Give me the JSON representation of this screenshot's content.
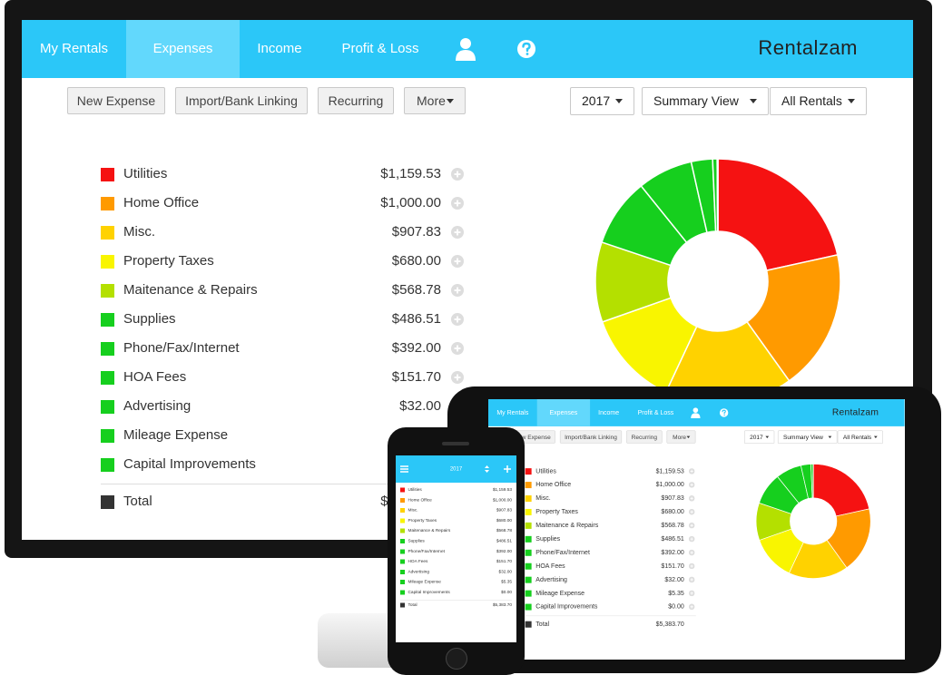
{
  "app": {
    "nav": [
      "My Rentals",
      "Expenses",
      "Income",
      "Profit & Loss"
    ],
    "logo": "Rentalzam",
    "buttons": [
      "New Expense",
      "Import/Bank Linking",
      "Recurring",
      "More"
    ],
    "filters": [
      "2017",
      "Summary View",
      "All Rentals"
    ],
    "expenses": [
      {
        "name": "Utilities",
        "amount": "$1,159.53",
        "value": 1159.53,
        "color": "#f51212"
      },
      {
        "name": "Home Office",
        "amount": "$1,000.00",
        "value": 1000.0,
        "color": "#ff9a00"
      },
      {
        "name": "Misc.",
        "amount": "$907.83",
        "value": 907.83,
        "color": "#ffd200"
      },
      {
        "name": "Property Taxes",
        "amount": "$680.00",
        "value": 680.0,
        "color": "#f9f500"
      },
      {
        "name": "Maitenance & Repairs",
        "amount": "$568.78",
        "value": 568.78,
        "color": "#b4e000"
      },
      {
        "name": "Supplies",
        "amount": "$486.51",
        "value": 486.51,
        "color": "#16cf1e"
      },
      {
        "name": "Phone/Fax/Internet",
        "amount": "$392.00",
        "value": 392.0,
        "color": "#16cf1e"
      },
      {
        "name": "HOA Fees",
        "amount": "$151.70",
        "value": 151.7,
        "color": "#16cf1e"
      },
      {
        "name": "Advertising",
        "amount": "$32.00",
        "value": 32.0,
        "color": "#16cf1e"
      },
      {
        "name": "Mileage Expense",
        "amount": "$5.35",
        "value": 5.35,
        "color": "#16cf1e"
      },
      {
        "name": "Capital Improvements",
        "amount": "$0.00",
        "value": 0.0,
        "color": "#16cf1e"
      }
    ],
    "total": {
      "name": "Total",
      "amount": "$5,383.70",
      "color": "#333333"
    }
  }
}
